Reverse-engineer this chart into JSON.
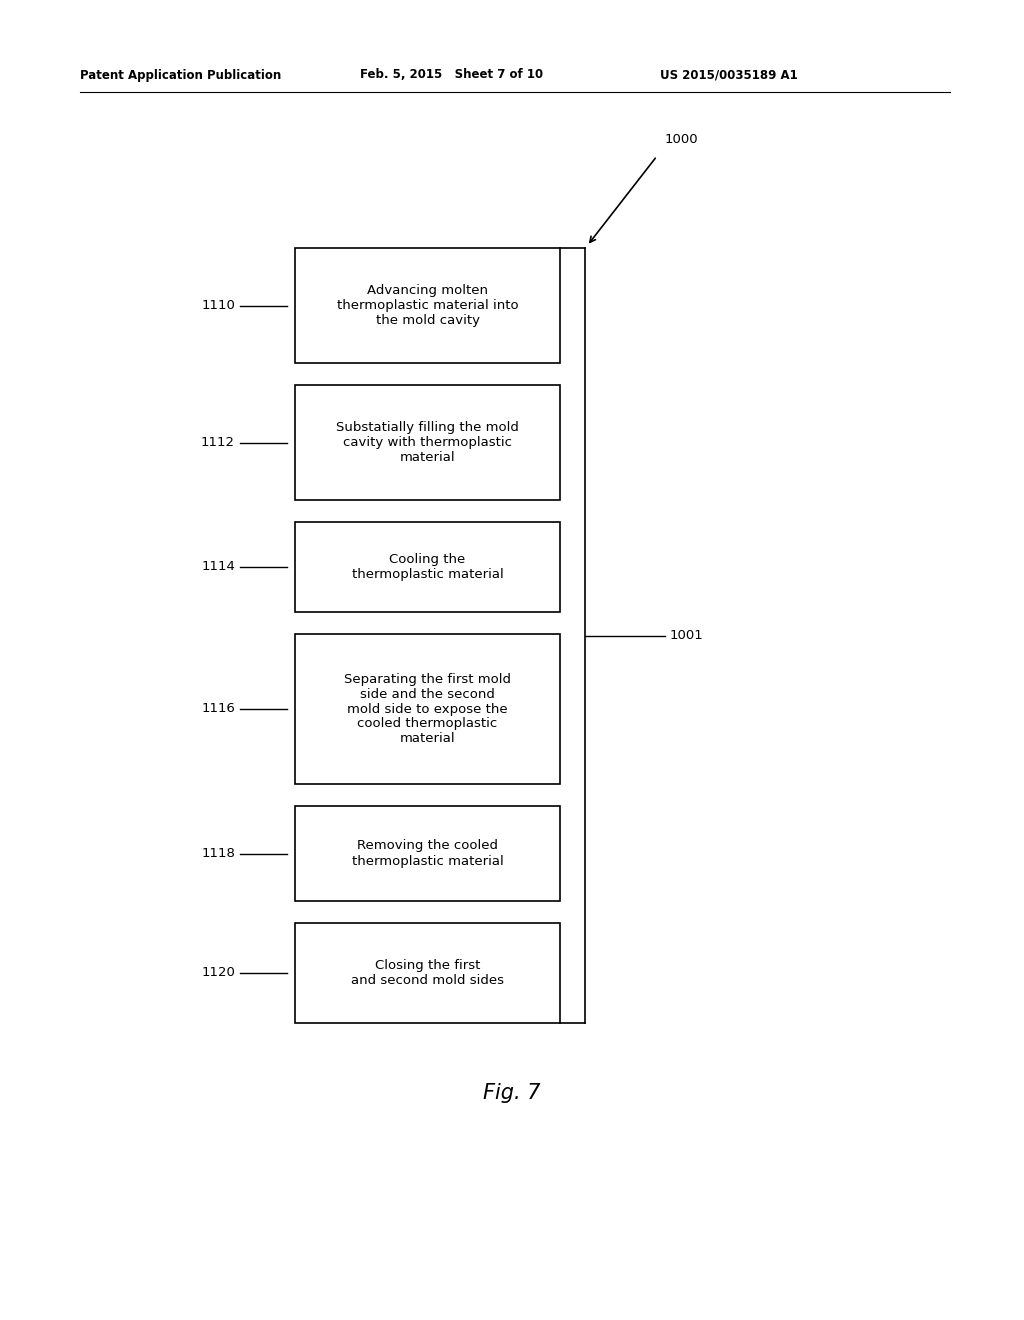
{
  "header_left": "Patent Application Publication",
  "header_mid": "Feb. 5, 2015   Sheet 7 of 10",
  "header_right": "US 2015/0035189 A1",
  "fig_label": "Fig. 7",
  "diagram_label": "1000",
  "bracket_label": "1001",
  "boxes": [
    {
      "id": "1110",
      "label": "1110",
      "text": "Advancing molten\nthermoplastic material into\nthe mold cavity"
    },
    {
      "id": "1112",
      "label": "1112",
      "text": "Substatially filling the mold\ncavity with thermoplastic\nmaterial"
    },
    {
      "id": "1114",
      "label": "1114",
      "text": "Cooling the\nthermoplastic material"
    },
    {
      "id": "1116",
      "label": "1116",
      "text": "Separating the first mold\nside and the second\nmold side to expose the\ncooled thermoplastic\nmaterial"
    },
    {
      "id": "1118",
      "label": "1118",
      "text": "Removing the cooled\nthermoplastic material"
    },
    {
      "id": "1120",
      "label": "1120",
      "text": "Closing the first\nand second mold sides"
    }
  ],
  "background_color": "#ffffff",
  "box_edge_color": "#000000",
  "text_color": "#000000",
  "font_size_header": 8.5,
  "font_size_box": 9.5,
  "font_size_label": 9.5,
  "font_size_fig": 15,
  "font_size_diagram": 9.5
}
